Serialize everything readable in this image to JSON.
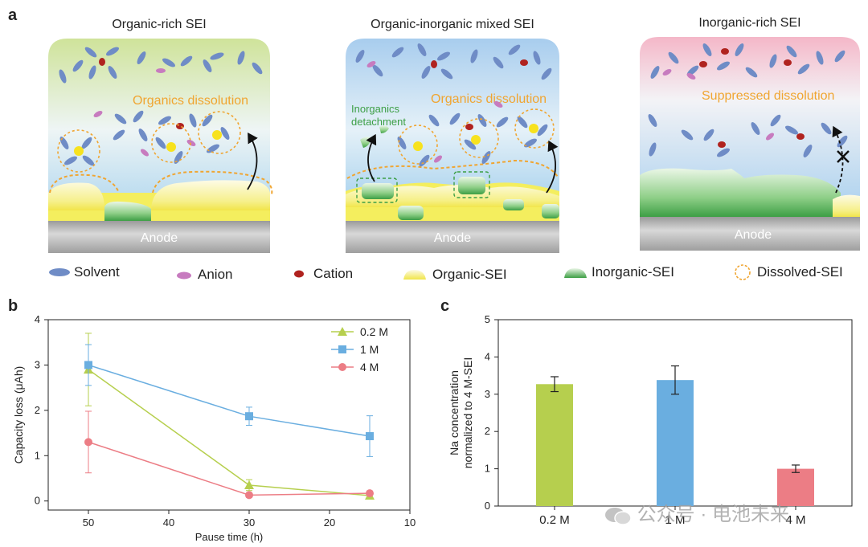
{
  "panels": {
    "a": "a",
    "b": "b",
    "c": "c"
  },
  "scheme": {
    "panels": [
      {
        "title": "Organic-rich SEI",
        "annotation": "Organics dissolution",
        "anode": "Anode"
      },
      {
        "title": "Organic-inorganic mixed SEI",
        "annotation": "Organics dissolution",
        "annotation2": "Inorganics detachment",
        "anode": "Anode"
      },
      {
        "title": "Inorganic-rich SEI",
        "annotation": "Suppressed dissolution",
        "anode": "Anode"
      }
    ],
    "legend": [
      "Solvent",
      "Anion",
      "Cation",
      "Organic-SEI",
      "Inorganic-SEI",
      "Dissolved-SEI"
    ]
  },
  "colors": {
    "solvent": "#6f8cc6",
    "anion": "#c77bbf",
    "cation": "#b0231f",
    "organic_sei": "#f2ea63",
    "inorganic_sei": "#4caf50",
    "dissolved": "#f0a531",
    "series_02": "#b6cf4e",
    "series_1": "#6aaee0",
    "series_4": "#ec7d85"
  },
  "chart_data": [
    {
      "type": "line",
      "xlabel": "Pause time (h)",
      "ylabel": "Capacity loss (μAh)",
      "xlim": [
        55,
        10
      ],
      "ylim": [
        -0.2,
        4
      ],
      "xticks": [
        50,
        40,
        30,
        20,
        10
      ],
      "yticks": [
        0,
        1,
        2,
        3,
        4
      ],
      "legend": "top-right",
      "series": [
        {
          "name": "0.2 M",
          "marker": "triangle",
          "x": [
            50,
            30,
            15
          ],
          "y": [
            2.9,
            0.35,
            0.12
          ],
          "err": [
            0.8,
            0.12,
            0.05
          ]
        },
        {
          "name": "1 M",
          "marker": "square",
          "x": [
            50,
            30,
            15
          ],
          "y": [
            3.0,
            1.87,
            1.43
          ],
          "err": [
            0.45,
            0.2,
            0.45
          ]
        },
        {
          "name": "4 M",
          "marker": "circle",
          "x": [
            50,
            30,
            15
          ],
          "y": [
            1.3,
            0.13,
            0.17
          ],
          "err": [
            0.68,
            0.05,
            0.05
          ]
        }
      ]
    },
    {
      "type": "bar",
      "xlabel": "",
      "ylabel_lines": [
        "Na concentration",
        "normalized to 4 M-SEI"
      ],
      "ylim": [
        0,
        5
      ],
      "yticks": [
        0,
        1,
        2,
        3,
        4,
        5
      ],
      "categories": [
        "0.2 M",
        "1 M",
        "4 M"
      ],
      "values": [
        3.27,
        3.38,
        1.0
      ],
      "err": [
        0.2,
        0.38,
        0.1
      ]
    }
  ],
  "watermark": "公众号 · 电池未来"
}
